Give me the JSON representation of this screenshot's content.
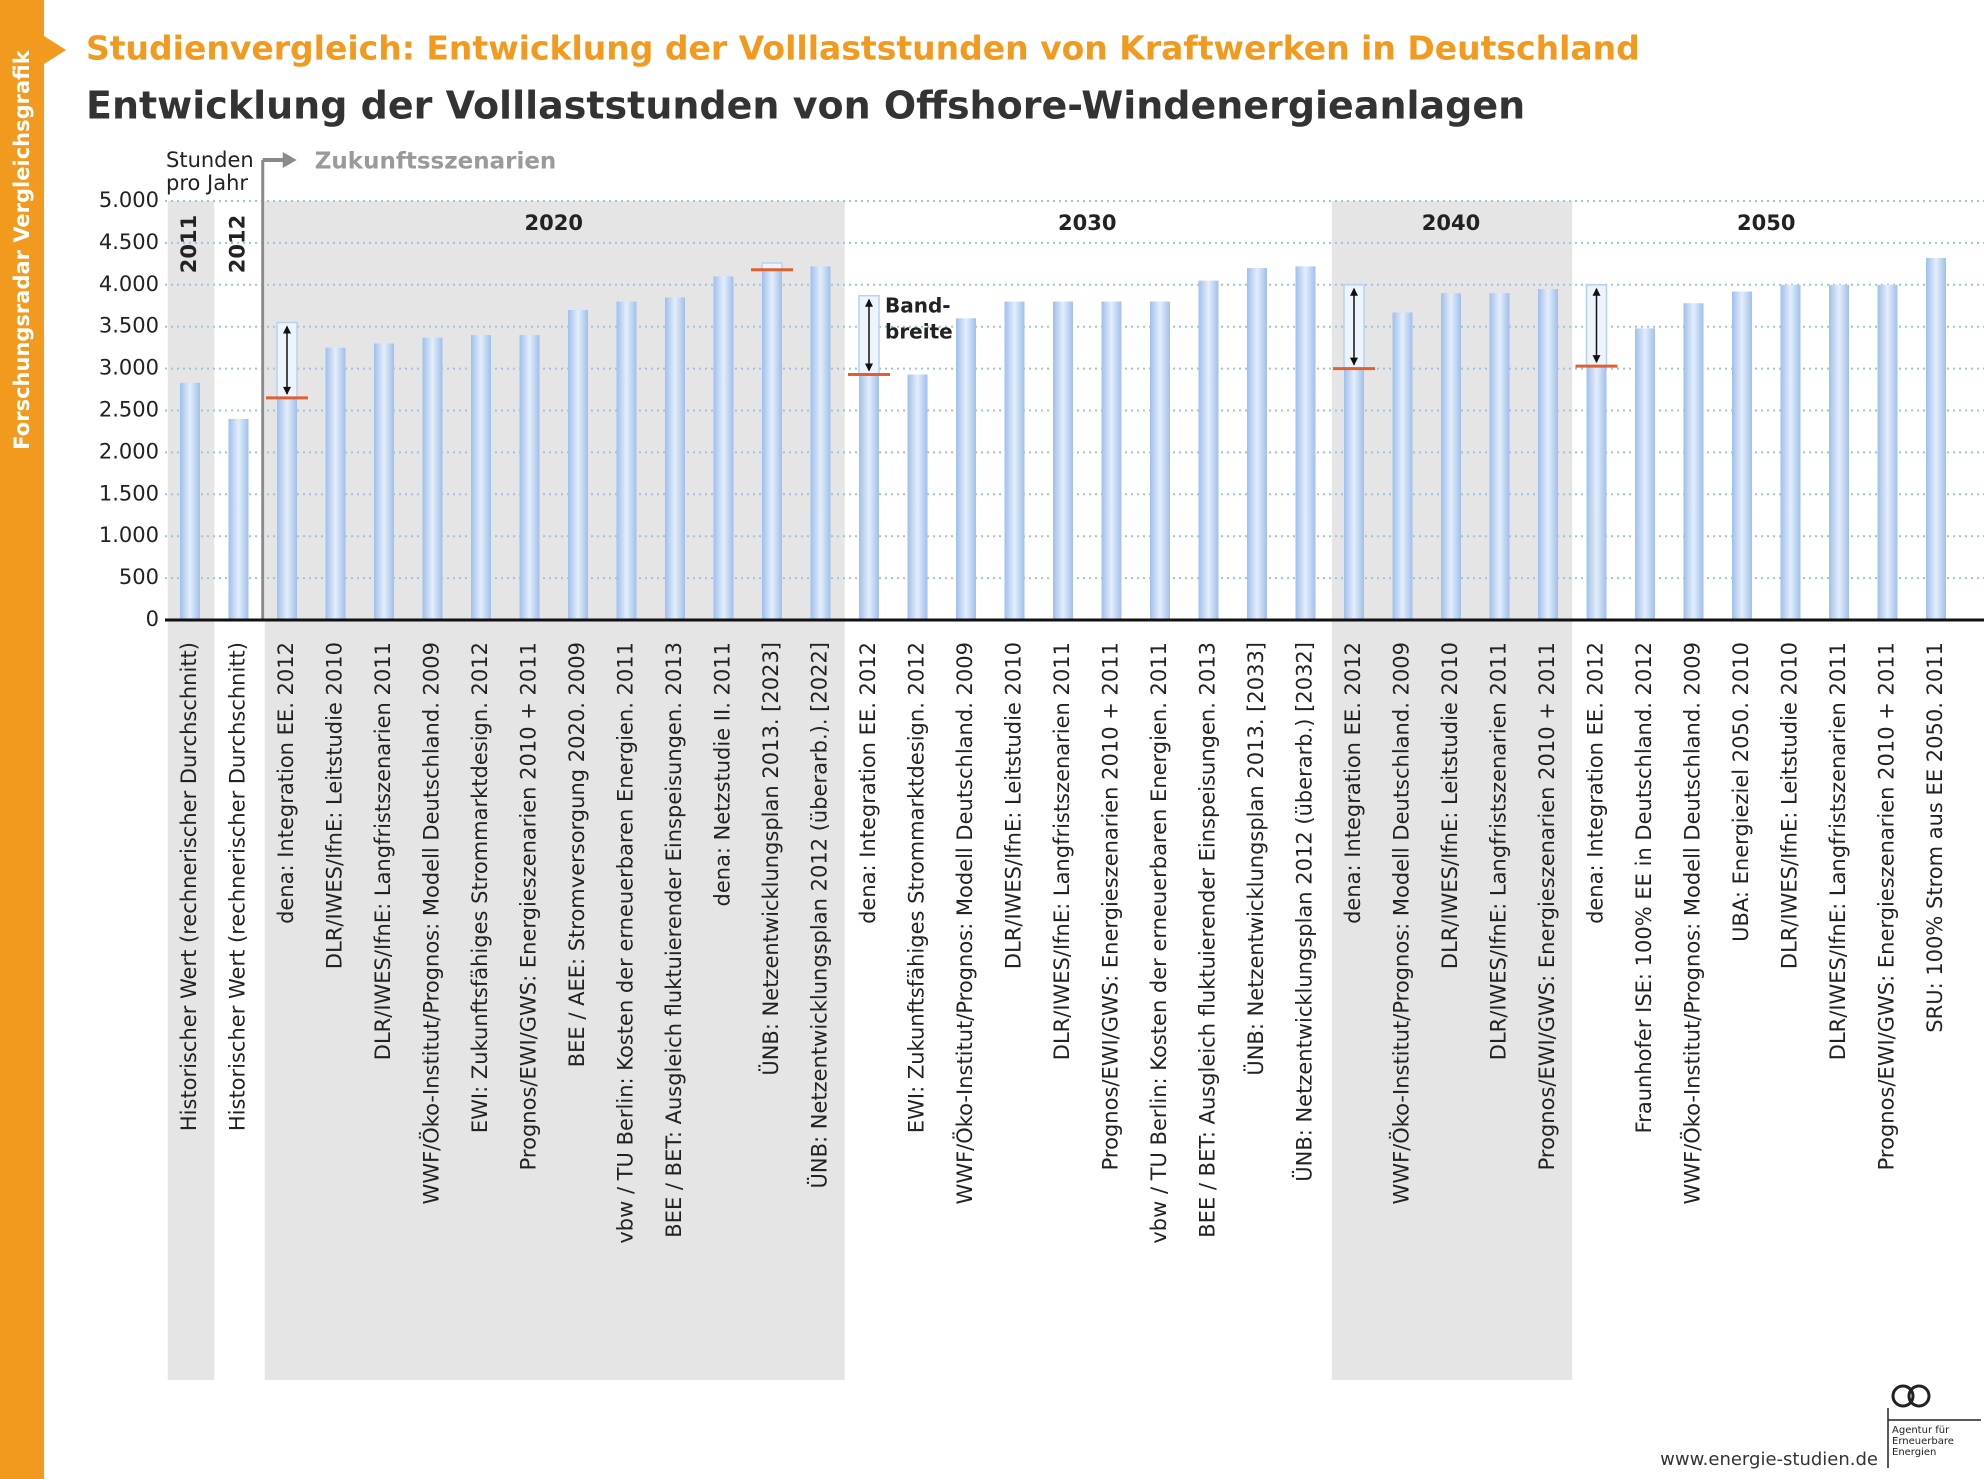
{
  "side_label": "Forschungsradar Vergleichsgrafik",
  "chart_data": {
    "type": "bar",
    "supertitle": "Studienvergleich: Entwicklung der Volllaststunden von Kraftwerken in Deutschland",
    "title": "Entwicklung der Volllaststunden von Offshore-Windenergieanlagen",
    "y_label": [
      "Stunden",
      "pro Jahr"
    ],
    "future_label": "Zukunftsszenarien",
    "band_label": [
      "Band-",
      "breite"
    ],
    "color": "#a9c6ee",
    "band_color": "#e06030",
    "grid": true,
    "ylim": [
      0,
      5000
    ],
    "yticks": [
      0,
      500,
      {
        "value": 1000,
        "label": "1.000"
      },
      {
        "value": 1500,
        "label": "1.500"
      },
      {
        "value": 2000,
        "label": "2.000"
      },
      {
        "value": 2500,
        "label": "2.500"
      },
      {
        "value": 3000,
        "label": "3.000"
      },
      {
        "value": 3500,
        "label": "3.500"
      },
      {
        "value": 4000,
        "label": "4.000"
      },
      {
        "value": 4500,
        "label": "4.500"
      },
      {
        "value": 5000,
        "label": "5.000"
      }
    ],
    "groups": [
      {
        "label": "2011",
        "count": 1
      },
      {
        "label": "2012",
        "count": 1
      },
      {
        "label": "2020",
        "count": 12
      },
      {
        "label": "2030",
        "count": 10
      },
      {
        "label": "2040",
        "count": 5
      },
      {
        "label": "2050",
        "count": 8
      }
    ],
    "categories": [
      "Historischer Wert (rechnerischer Durchschnitt)",
      "Historischer Wert (rechnerischer Durchschnitt)",
      "dena: Integration EE. 2012",
      "DLR/IWES/IfnE: Leitstudie 2010",
      "DLR/IWES/IfnE: Langfristszenarien 2011",
      "WWF/Öko-Institut/Prognos: Modell Deutschland. 2009",
      "EWI: Zukunftsfähiges Strommarktdesign. 2012",
      "Prognos/EWI/GWS: Energieszenarien 2010 + 2011",
      "BEE / AEE: Stromversorgung 2020. 2009",
      "vbw / TU Berlin: Kosten der erneuerbaren Energien. 2011",
      "BEE / BET: Ausgleich fluktuierender Einspeisungen. 2013",
      "dena: Netzstudie II. 2011",
      "ÜNB: Netzentwicklungsplan 2013. [2023]",
      "ÜNB: Netzentwicklungsplan 2012 (überarb.). [2022]",
      "dena: Integration EE. 2012",
      "EWI: Zukunftsfähiges Strommarktdesign. 2012",
      "WWF/Öko-Institut/Prognos: Modell Deutschland. 2009",
      "DLR/IWES/IfnE: Leitstudie 2010",
      "DLR/IWES/IfnE: Langfristszenarien 2011",
      "Prognos/EWI/GWS: Energieszenarien 2010 + 2011",
      "vbw / TU Berlin: Kosten der erneuerbaren Energien. 2011",
      "BEE / BET: Ausgleich fluktuierender Einspeisungen. 2013",
      "ÜNB: Netzentwicklungsplan 2013. [2033]",
      "ÜNB: Netzentwicklungsplan 2012 (überarb.) [2032]",
      "dena: Integration EE. 2012",
      "WWF/Öko-Institut/Prognos: Modell Deutschland. 2009",
      "DLR/IWES/IfnE: Leitstudie 2010",
      "DLR/IWES/IfnE: Langfristszenarien 2011",
      "Prognos/EWI/GWS: Energieszenarien 2010 + 2011",
      "dena: Integration EE. 2012",
      "Fraunhofer ISE: 100% EE in Deutschland. 2012",
      "WWF/Öko-Institut/Prognos: Modell Deutschland. 2009",
      "UBA: Energieziel 2050. 2010",
      "DLR/IWES/IfnE: Leitstudie 2010",
      "DLR/IWES/IfnE: Langfristszenarien 2011",
      "Prognos/EWI/GWS: Energieszenarien 2010 + 2011",
      "SRU: 100% Strom aus EE 2050. 2011"
    ],
    "values": [
      2830,
      2400,
      2650,
      3250,
      3300,
      3370,
      3400,
      3400,
      3700,
      3800,
      3850,
      4100,
      4180,
      4220,
      2930,
      2930,
      3600,
      3800,
      3800,
      3800,
      3800,
      4050,
      4200,
      4220,
      3000,
      3670,
      3900,
      3900,
      3950,
      3030,
      3480,
      3780,
      3920,
      4000,
      4000,
      4000,
      4320
    ],
    "band_high": [
      null,
      null,
      3550,
      null,
      null,
      null,
      null,
      null,
      null,
      null,
      null,
      null,
      4260,
      null,
      3870,
      null,
      null,
      null,
      null,
      null,
      null,
      null,
      null,
      null,
      4000,
      null,
      null,
      null,
      null,
      4000,
      null,
      null,
      null,
      null,
      null,
      null,
      null
    ]
  },
  "footer": "www.energie-studien.de",
  "logo": [
    "Agentur für",
    "Erneuerbare",
    "Energien"
  ]
}
